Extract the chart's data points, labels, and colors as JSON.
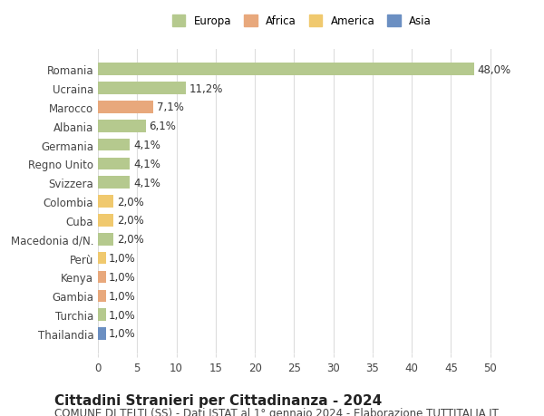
{
  "countries": [
    "Romania",
    "Ucraina",
    "Marocco",
    "Albania",
    "Germania",
    "Regno Unito",
    "Svizzera",
    "Colombia",
    "Cuba",
    "Macedonia d/N.",
    "Perù",
    "Kenya",
    "Gambia",
    "Turchia",
    "Thailandia"
  ],
  "values": [
    48.0,
    11.2,
    7.1,
    6.1,
    4.1,
    4.1,
    4.1,
    2.0,
    2.0,
    2.0,
    1.0,
    1.0,
    1.0,
    1.0,
    1.0
  ],
  "labels": [
    "48,0%",
    "11,2%",
    "7,1%",
    "6,1%",
    "4,1%",
    "4,1%",
    "4,1%",
    "2,0%",
    "2,0%",
    "2,0%",
    "1,0%",
    "1,0%",
    "1,0%",
    "1,0%",
    "1,0%"
  ],
  "continents": [
    "Europa",
    "Europa",
    "Africa",
    "Europa",
    "Europa",
    "Europa",
    "Europa",
    "America",
    "America",
    "Europa",
    "America",
    "Africa",
    "Africa",
    "Europa",
    "Asia"
  ],
  "continent_colors": {
    "Europa": "#b5c98e",
    "Africa": "#e8a87c",
    "America": "#f0c96e",
    "Asia": "#6b8fc2"
  },
  "legend_order": [
    "Europa",
    "Africa",
    "America",
    "Asia"
  ],
  "xlim": [
    0,
    52
  ],
  "xticks": [
    0,
    5,
    10,
    15,
    20,
    25,
    30,
    35,
    40,
    45,
    50
  ],
  "title": "Cittadini Stranieri per Cittadinanza - 2024",
  "subtitle": "COMUNE DI TELTI (SS) - Dati ISTAT al 1° gennaio 2024 - Elaborazione TUTTITALIA.IT",
  "background_color": "#ffffff",
  "grid_color": "#dddddd",
  "bar_height": 0.65,
  "label_fontsize": 8.5,
  "title_fontsize": 11,
  "subtitle_fontsize": 8.5,
  "tick_fontsize": 8.5
}
